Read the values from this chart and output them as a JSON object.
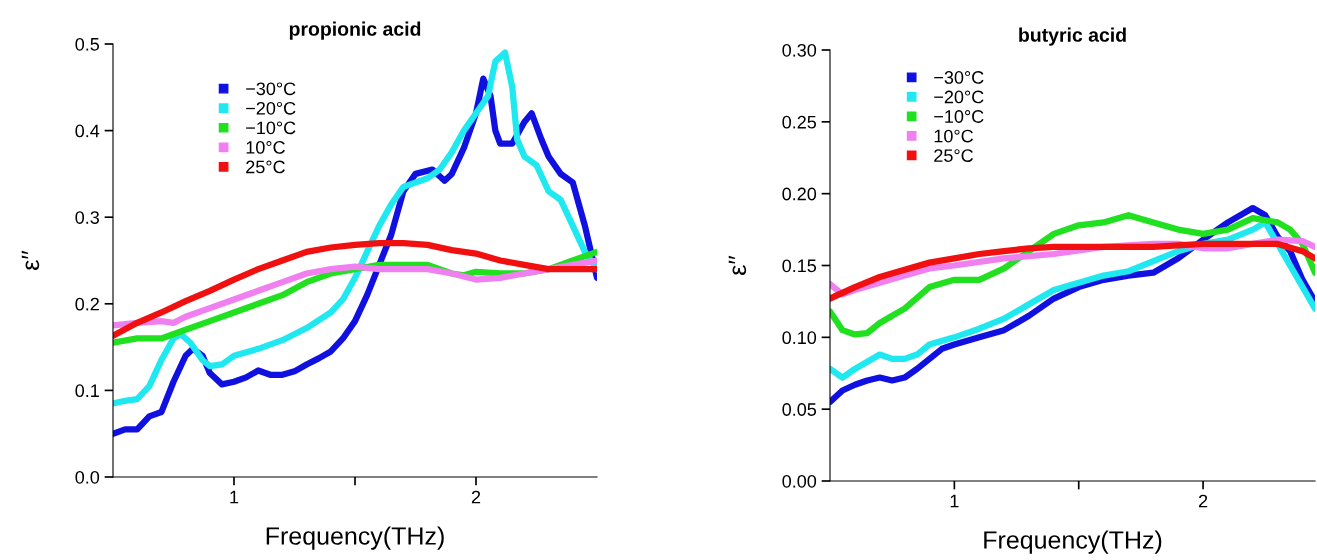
{
  "chart_data": [
    {
      "type": "line",
      "title": "propionic acid",
      "xlabel": "Frequency(THz)",
      "ylabel": "ε′′",
      "xlim": [
        0.5,
        2.5
      ],
      "ylim": [
        0,
        0.5
      ],
      "xticks": [
        1,
        {
          "value": 1.5,
          "label": null
        },
        2
      ],
      "yticks": [
        {
          "value": 0,
          "label": "0.0"
        },
        0.1,
        0.2,
        0.3,
        0.4,
        0.5
      ],
      "legend": "top left",
      "grid": false,
      "series": [
        {
          "name": "−30°C",
          "color": "#1010e0",
          "x": [
            0.5,
            0.55,
            0.6,
            0.65,
            0.7,
            0.75,
            0.8,
            0.83,
            0.87,
            0.9,
            0.95,
            1.0,
            1.05,
            1.1,
            1.15,
            1.2,
            1.25,
            1.3,
            1.35,
            1.4,
            1.45,
            1.5,
            1.55,
            1.6,
            1.65,
            1.7,
            1.75,
            1.82,
            1.87,
            1.9,
            1.95,
            2.0,
            2.03,
            2.06,
            2.08,
            2.1,
            2.15,
            2.2,
            2.23,
            2.27,
            2.3,
            2.35,
            2.4,
            2.45,
            2.5
          ],
          "values": [
            0.05,
            0.055,
            0.055,
            0.07,
            0.075,
            0.11,
            0.14,
            0.148,
            0.14,
            0.12,
            0.107,
            0.11,
            0.115,
            0.123,
            0.118,
            0.118,
            0.122,
            0.13,
            0.137,
            0.145,
            0.16,
            0.18,
            0.21,
            0.245,
            0.28,
            0.33,
            0.35,
            0.355,
            0.342,
            0.35,
            0.38,
            0.42,
            0.46,
            0.44,
            0.4,
            0.385,
            0.385,
            0.41,
            0.42,
            0.39,
            0.37,
            0.35,
            0.34,
            0.29,
            0.23
          ]
        },
        {
          "name": "−20°C",
          "color": "#20e8f0",
          "x": [
            0.5,
            0.55,
            0.6,
            0.65,
            0.7,
            0.75,
            0.78,
            0.82,
            0.87,
            0.9,
            0.95,
            1.0,
            1.1,
            1.2,
            1.3,
            1.4,
            1.45,
            1.5,
            1.55,
            1.6,
            1.65,
            1.7,
            1.8,
            1.85,
            1.9,
            1.95,
            2.0,
            2.05,
            2.08,
            2.12,
            2.15,
            2.17,
            2.2,
            2.25,
            2.3,
            2.35,
            2.4,
            2.45,
            2.5
          ],
          "values": [
            0.085,
            0.088,
            0.09,
            0.105,
            0.135,
            0.16,
            0.165,
            0.155,
            0.135,
            0.128,
            0.13,
            0.14,
            0.148,
            0.158,
            0.172,
            0.19,
            0.205,
            0.23,
            0.26,
            0.29,
            0.315,
            0.335,
            0.345,
            0.355,
            0.375,
            0.4,
            0.42,
            0.44,
            0.48,
            0.49,
            0.45,
            0.39,
            0.37,
            0.36,
            0.33,
            0.32,
            0.29,
            0.26,
            0.24
          ]
        },
        {
          "name": "−10°C",
          "color": "#20e020",
          "x": [
            0.5,
            0.6,
            0.7,
            0.8,
            0.9,
            1.0,
            1.1,
            1.2,
            1.3,
            1.4,
            1.5,
            1.6,
            1.7,
            1.8,
            1.9,
            1.95,
            2.0,
            2.1,
            2.2,
            2.3,
            2.4,
            2.5
          ],
          "values": [
            0.155,
            0.16,
            0.16,
            0.17,
            0.18,
            0.19,
            0.2,
            0.21,
            0.225,
            0.235,
            0.24,
            0.245,
            0.245,
            0.245,
            0.235,
            0.233,
            0.237,
            0.235,
            0.235,
            0.24,
            0.25,
            0.26
          ]
        },
        {
          "name": "10°C",
          "color": "#f080f0",
          "x": [
            0.5,
            0.6,
            0.7,
            0.75,
            0.8,
            0.9,
            1.0,
            1.1,
            1.2,
            1.3,
            1.4,
            1.5,
            1.6,
            1.7,
            1.8,
            1.9,
            2.0,
            2.1,
            2.2,
            2.3,
            2.4,
            2.5
          ],
          "values": [
            0.175,
            0.178,
            0.18,
            0.178,
            0.185,
            0.195,
            0.205,
            0.215,
            0.225,
            0.235,
            0.24,
            0.243,
            0.24,
            0.24,
            0.24,
            0.235,
            0.228,
            0.23,
            0.235,
            0.24,
            0.245,
            0.25
          ]
        },
        {
          "name": "25°C",
          "color": "#f01010",
          "x": [
            0.5,
            0.6,
            0.7,
            0.8,
            0.9,
            1.0,
            1.1,
            1.2,
            1.3,
            1.4,
            1.5,
            1.6,
            1.7,
            1.8,
            1.9,
            2.0,
            2.1,
            2.2,
            2.3,
            2.4,
            2.5
          ],
          "values": [
            0.163,
            0.178,
            0.19,
            0.203,
            0.215,
            0.228,
            0.24,
            0.25,
            0.26,
            0.265,
            0.268,
            0.27,
            0.27,
            0.268,
            0.262,
            0.258,
            0.25,
            0.245,
            0.24,
            0.24,
            0.24
          ]
        }
      ]
    },
    {
      "type": "line",
      "title": "butyric acid",
      "xlabel": "Frequency(THz)",
      "ylabel": "ε′′",
      "xlim": [
        0.5,
        2.45
      ],
      "ylim": [
        0,
        0.3
      ],
      "xticks": [
        1,
        {
          "value": 1.5,
          "label": null
        },
        2
      ],
      "yticks": [
        {
          "value": 0,
          "label": "0.00"
        },
        0.05,
        {
          "value": 0.1,
          "label": "0.10"
        },
        0.15,
        {
          "value": 0.2,
          "label": "0.20"
        },
        0.25,
        {
          "value": 0.3,
          "label": "0.30"
        }
      ],
      "legend": "top left",
      "grid": false,
      "series": [
        {
          "name": "−30°C",
          "color": "#1010e0",
          "x": [
            0.5,
            0.55,
            0.6,
            0.65,
            0.7,
            0.75,
            0.8,
            0.85,
            0.9,
            0.95,
            1.0,
            1.1,
            1.2,
            1.3,
            1.4,
            1.5,
            1.6,
            1.7,
            1.8,
            1.9,
            2.0,
            2.1,
            2.2,
            2.25,
            2.3,
            2.35,
            2.4,
            2.45
          ],
          "values": [
            0.055,
            0.063,
            0.067,
            0.07,
            0.072,
            0.07,
            0.072,
            0.078,
            0.085,
            0.092,
            0.095,
            0.1,
            0.105,
            0.115,
            0.127,
            0.135,
            0.14,
            0.143,
            0.145,
            0.155,
            0.168,
            0.18,
            0.19,
            0.185,
            0.17,
            0.16,
            0.14,
            0.125
          ]
        },
        {
          "name": "−20°C",
          "color": "#20e8f0",
          "x": [
            0.5,
            0.55,
            0.6,
            0.65,
            0.7,
            0.75,
            0.8,
            0.85,
            0.9,
            1.0,
            1.1,
            1.2,
            1.3,
            1.4,
            1.5,
            1.6,
            1.7,
            1.8,
            1.9,
            2.0,
            2.1,
            2.2,
            2.25,
            2.3,
            2.35,
            2.4,
            2.45
          ],
          "values": [
            0.078,
            0.072,
            0.078,
            0.083,
            0.088,
            0.085,
            0.085,
            0.088,
            0.095,
            0.1,
            0.106,
            0.113,
            0.123,
            0.133,
            0.138,
            0.143,
            0.146,
            0.153,
            0.16,
            0.165,
            0.168,
            0.175,
            0.18,
            0.165,
            0.15,
            0.135,
            0.12
          ]
        },
        {
          "name": "−10°C",
          "color": "#20e020",
          "x": [
            0.5,
            0.55,
            0.6,
            0.65,
            0.7,
            0.75,
            0.8,
            0.9,
            1.0,
            1.1,
            1.2,
            1.3,
            1.4,
            1.5,
            1.6,
            1.7,
            1.8,
            1.9,
            2.0,
            2.1,
            2.2,
            2.3,
            2.35,
            2.4,
            2.45
          ],
          "values": [
            0.118,
            0.105,
            0.102,
            0.103,
            0.11,
            0.115,
            0.12,
            0.135,
            0.14,
            0.14,
            0.148,
            0.16,
            0.172,
            0.178,
            0.18,
            0.185,
            0.18,
            0.175,
            0.172,
            0.175,
            0.183,
            0.18,
            0.175,
            0.165,
            0.145
          ]
        },
        {
          "name": "10°C",
          "color": "#f080f0",
          "x": [
            0.5,
            0.55,
            0.6,
            0.7,
            0.8,
            0.9,
            1.0,
            1.2,
            1.4,
            1.6,
            1.8,
            1.9,
            2.0,
            2.1,
            2.2,
            2.3,
            2.4,
            2.45
          ],
          "values": [
            0.137,
            0.13,
            0.133,
            0.138,
            0.143,
            0.148,
            0.15,
            0.155,
            0.158,
            0.163,
            0.165,
            0.165,
            0.162,
            0.162,
            0.165,
            0.168,
            0.167,
            0.163
          ]
        },
        {
          "name": "25°C",
          "color": "#f01010",
          "x": [
            0.5,
            0.6,
            0.7,
            0.8,
            0.9,
            1.0,
            1.1,
            1.2,
            1.3,
            1.4,
            1.5,
            1.6,
            1.7,
            1.8,
            1.9,
            2.0,
            2.1,
            2.2,
            2.3,
            2.4,
            2.45
          ],
          "values": [
            0.127,
            0.135,
            0.142,
            0.147,
            0.152,
            0.155,
            0.158,
            0.16,
            0.162,
            0.163,
            0.163,
            0.163,
            0.163,
            0.163,
            0.164,
            0.165,
            0.165,
            0.165,
            0.165,
            0.16,
            0.155
          ]
        }
      ]
    }
  ]
}
